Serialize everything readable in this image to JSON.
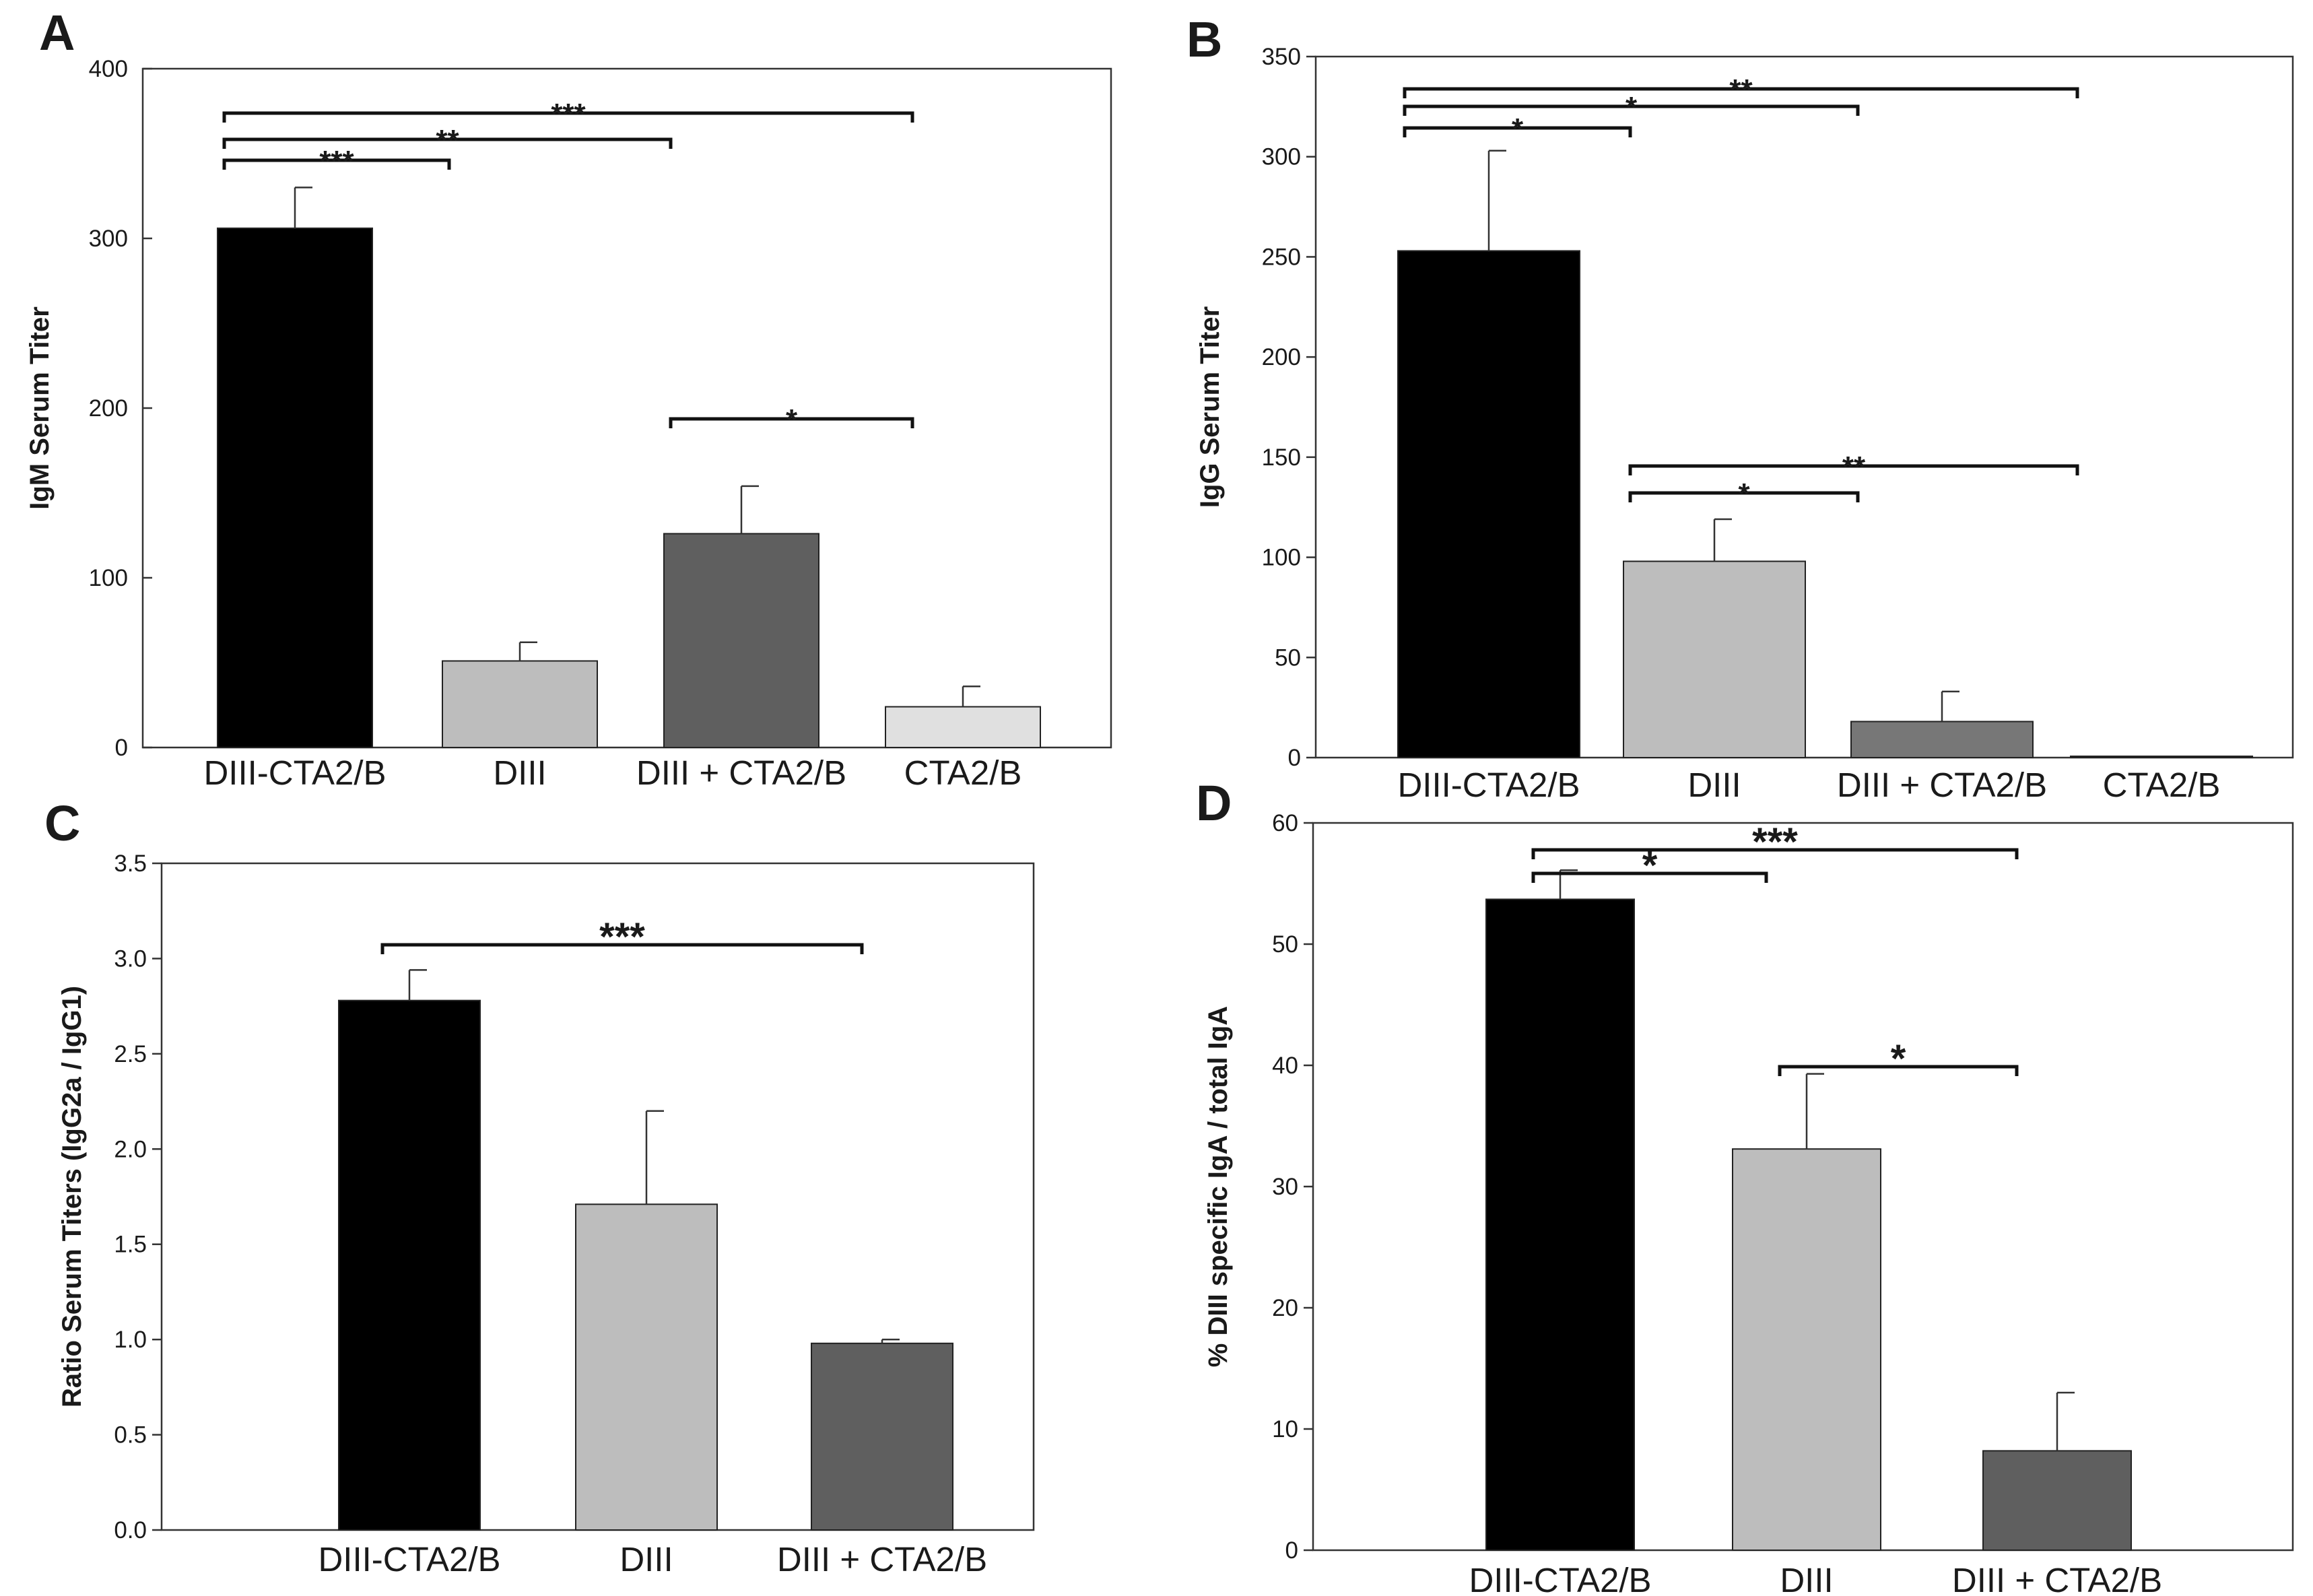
{
  "colors": {
    "black": "#000000",
    "grey_light": "#bdbdbd",
    "grey_dark": "#5f5f5f",
    "grey_pale": "#e0e0e0",
    "grey_mid": "#777777"
  },
  "chart_data": [
    {
      "panel": "A",
      "type": "bar",
      "ylabel": "IgM Serum Titer",
      "ylim": [
        0,
        400
      ],
      "yticks": [
        "0",
        "100",
        "200",
        "300",
        "400"
      ],
      "categories": [
        "DIII-CTA2/B",
        "DIII",
        "DIII + CTA2/B",
        "CTA2/B"
      ],
      "values": [
        306,
        51,
        126,
        24
      ],
      "errors": [
        24,
        11,
        28,
        12
      ],
      "bar_colors": [
        "#000000",
        "#bdbdbd",
        "#5f5f5f",
        "#e0e0e0"
      ],
      "significance": [
        {
          "from": 0,
          "to": 1,
          "label": "***"
        },
        {
          "from": 0,
          "to": 2,
          "label": "**"
        },
        {
          "from": 0,
          "to": 3,
          "label": "***"
        },
        {
          "from": 2,
          "to": 3,
          "label": "*"
        }
      ]
    },
    {
      "panel": "B",
      "type": "bar",
      "ylabel": "IgG Serum Titer",
      "ylim": [
        0,
        350
      ],
      "yticks": [
        "0",
        "50",
        "100",
        "150",
        "200",
        "250",
        "300",
        "350"
      ],
      "categories": [
        "DIII-CTA2/B",
        "DIII",
        "DIII + CTA2/B",
        "CTA2/B"
      ],
      "values": [
        253,
        98,
        18,
        0
      ],
      "errors": [
        50,
        21,
        15,
        0
      ],
      "bar_colors": [
        "#000000",
        "#bdbdbd",
        "#777777",
        "#e0e0e0"
      ],
      "significance": [
        {
          "from": 0,
          "to": 1,
          "label": "*"
        },
        {
          "from": 0,
          "to": 2,
          "label": "*"
        },
        {
          "from": 0,
          "to": 3,
          "label": "**"
        },
        {
          "from": 1,
          "to": 2,
          "label": "*"
        },
        {
          "from": 1,
          "to": 3,
          "label": "**"
        }
      ]
    },
    {
      "panel": "C",
      "type": "bar",
      "ylabel": "Ratio Serum Titers (IgG2a / IgG1)",
      "ylim": [
        0,
        3.5
      ],
      "yticks": [
        "0.0",
        "0.5",
        "1.0",
        "1.5",
        "2.0",
        "2.5",
        "3.0",
        "3.5"
      ],
      "categories": [
        "DIII-CTA2/B",
        "DIII",
        "DIII + CTA2/B"
      ],
      "values": [
        2.78,
        1.71,
        0.98
      ],
      "errors": [
        0.16,
        0.49,
        0.02
      ],
      "bar_colors": [
        "#000000",
        "#bdbdbd",
        "#5f5f5f"
      ],
      "significance": [
        {
          "from": 0,
          "to": 2,
          "label": "***"
        }
      ]
    },
    {
      "panel": "D",
      "type": "bar",
      "ylabel": "% DIII specific IgA / total IgA",
      "ylim": [
        0,
        60
      ],
      "yticks": [
        "0",
        "10",
        "20",
        "30",
        "40",
        "50",
        "60"
      ],
      "categories": [
        "DIII-CTA2/B",
        "DIII",
        "DIII + CTA2/B"
      ],
      "values": [
        53.7,
        33.1,
        8.2
      ],
      "errors": [
        2.4,
        6.2,
        4.8
      ],
      "bar_colors": [
        "#000000",
        "#bdbdbd",
        "#5f5f5f"
      ],
      "significance": [
        {
          "from": 0,
          "to": 1,
          "label": "*"
        },
        {
          "from": 0,
          "to": 2,
          "label": "***"
        },
        {
          "from": 1,
          "to": 2,
          "label": "*"
        }
      ]
    }
  ]
}
